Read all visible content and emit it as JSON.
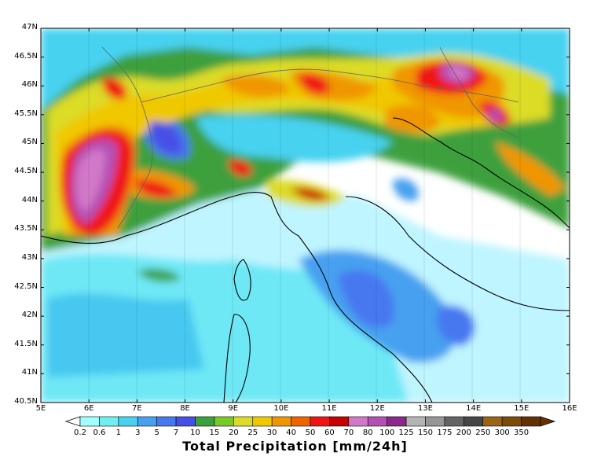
{
  "title": "Total Precipitation [mm/24h]",
  "lat_ticks": [
    "47N",
    "46.5N",
    "46N",
    "45.5N",
    "45N",
    "44.5N",
    "44N",
    "43.5N",
    "43N",
    "42.5N",
    "42N",
    "41.5N",
    "41N",
    "40.5N"
  ],
  "lon_ticks": [
    "5E",
    "6E",
    "7E",
    "8E",
    "9E",
    "10E",
    "11E",
    "12E",
    "13E",
    "14E",
    "15E",
    "16E"
  ],
  "colorbar": {
    "labels": [
      "0.2",
      "0.6",
      "1",
      "3",
      "5",
      "7",
      "10",
      "15",
      "20",
      "25",
      "30",
      "40",
      "50",
      "60",
      "70",
      "80",
      "100",
      "125",
      "150",
      "175",
      "200",
      "250",
      "300",
      "350"
    ],
    "colors": [
      "#a0ffff",
      "#6ef0f0",
      "#46d2f0",
      "#46a0f0",
      "#4678f0",
      "#4650e6",
      "#3ca03c",
      "#78c828",
      "#dcdc28",
      "#f0c800",
      "#f09600",
      "#f06400",
      "#f01414",
      "#c80000",
      "#d278c8",
      "#b450b4",
      "#8c288c",
      "#b4b4b4",
      "#969696",
      "#646464",
      "#464646",
      "#9b6414",
      "#7d4b0a",
      "#643200"
    ]
  },
  "domain": {
    "lon_range": [
      5,
      16
    ],
    "lat_range": [
      40.5,
      47
    ]
  }
}
